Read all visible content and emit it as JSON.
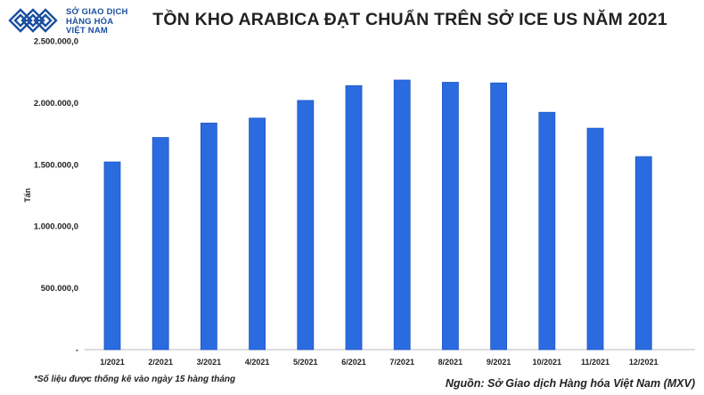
{
  "logo": {
    "line1": "SỞ GIAO DỊCH",
    "line2": "HÀNG HÓA",
    "line3": "VIỆT NAM"
  },
  "colors": {
    "bar": "#2b6be0",
    "bar_edge": "#1e55c4",
    "logo": "#1a4fa0"
  },
  "chart_data": {
    "type": "bar",
    "title": "TỒN KHO ARABICA ĐẠT CHUẨN TRÊN SỞ ICE US NĂM 2021",
    "ylabel": "Tấn",
    "xlabel": "",
    "categories": [
      "1/2021",
      "2/2021",
      "3/2021",
      "4/2021",
      "5/2021",
      "6/2021",
      "7/2021",
      "8/2021",
      "9/2021",
      "10/2021",
      "11/2021",
      "12/2021"
    ],
    "values": [
      1520000,
      1718000,
      1835000,
      1875000,
      2018000,
      2138000,
      2183000,
      2165000,
      2160000,
      1922000,
      1793000,
      1563000
    ],
    "ylim": [
      0,
      2500000
    ],
    "yticks": [
      0,
      500000,
      1000000,
      1500000,
      2000000,
      2500000
    ],
    "ytick_labels": [
      "-",
      "500.000,0",
      "1.000.000,0",
      "1.500.000,0",
      "2.000.000,0",
      "2.500.000,0"
    ],
    "grid": false,
    "legend": "none"
  },
  "footnote": "*Số liệu được thống kê vào ngày 15 hàng tháng",
  "source": "Nguồn: Sở Giao dịch Hàng hóa Việt Nam (MXV)"
}
